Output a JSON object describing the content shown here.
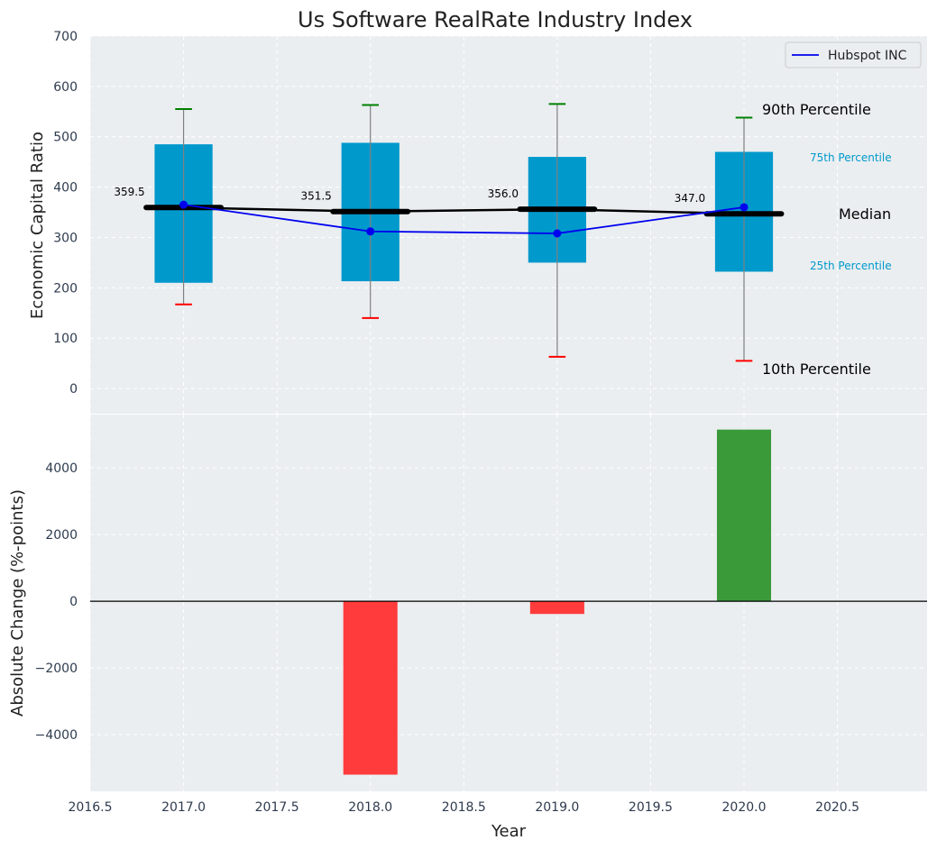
{
  "chart_data": [
    {
      "type": "box",
      "title": "Us Software RealRate Industry Index",
      "xlabel": "",
      "ylabel": "Economic Capital Ratio",
      "xlim": [
        2016.5,
        2020.98
      ],
      "ylim": [
        -50,
        700
      ],
      "yticks": [
        0,
        100,
        200,
        300,
        400,
        500,
        600,
        700
      ],
      "grid": true,
      "legend": {
        "position": "top-right",
        "entries": [
          "Hubspot INC"
        ]
      },
      "x": [
        2017,
        2018,
        2019,
        2020
      ],
      "boxes": [
        {
          "x": 2017,
          "p10": 167,
          "p25": 210,
          "median": 359.5,
          "p75": 485,
          "p90": 555
        },
        {
          "x": 2018,
          "p10": 140,
          "p25": 213,
          "median": 351.5,
          "p75": 488,
          "p90": 563
        },
        {
          "x": 2019,
          "p10": 63,
          "p25": 250,
          "median": 356.0,
          "p75": 460,
          "p90": 565
        },
        {
          "x": 2020,
          "p10": 55,
          "p25": 232,
          "median": 347.0,
          "p75": 470,
          "p90": 538
        }
      ],
      "median_labels": [
        "359.5",
        "351.5",
        "356.0",
        "347.0"
      ],
      "series": [
        {
          "name": "Hubspot INC",
          "color": "#0000ee",
          "values": [
            365,
            312,
            308,
            360
          ]
        }
      ],
      "annotations": {
        "p90": "90th Percentile",
        "p75": "75th Percentile",
        "median": "Median",
        "p25": "25th Percentile",
        "p10": "10th Percentile"
      },
      "colors": {
        "box": "#0099cc",
        "median": "#000000",
        "whisker_top": "#008000",
        "whisker_bottom": "#ff0000",
        "background": "#eaeef0"
      }
    },
    {
      "type": "bar",
      "xlabel": "Year",
      "ylabel": "Absolute Change (%-points)",
      "xlim": [
        2016.5,
        2020.98
      ],
      "ylim": [
        -5700,
        5600
      ],
      "xticks": [
        2016.5,
        2017.0,
        2017.5,
        2018.0,
        2018.5,
        2019.0,
        2019.5,
        2020.0,
        2020.5
      ],
      "xtick_labels": [
        "2016.5",
        "2017.0",
        "2017.5",
        "2018.0",
        "2018.5",
        "2019.0",
        "2019.5",
        "2020.0",
        "2020.5"
      ],
      "yticks": [
        -4000,
        -2000,
        0,
        2000,
        4000
      ],
      "ytick_labels": [
        "−4000",
        "−2000",
        "0",
        "2000",
        "4000"
      ],
      "grid": true,
      "x": [
        2018,
        2019,
        2020
      ],
      "values": [
        -5200,
        -380,
        5150
      ],
      "colors": {
        "negative": "#ff3b3b",
        "positive": "#3a9a3a",
        "background": "#eaeef0"
      }
    }
  ]
}
